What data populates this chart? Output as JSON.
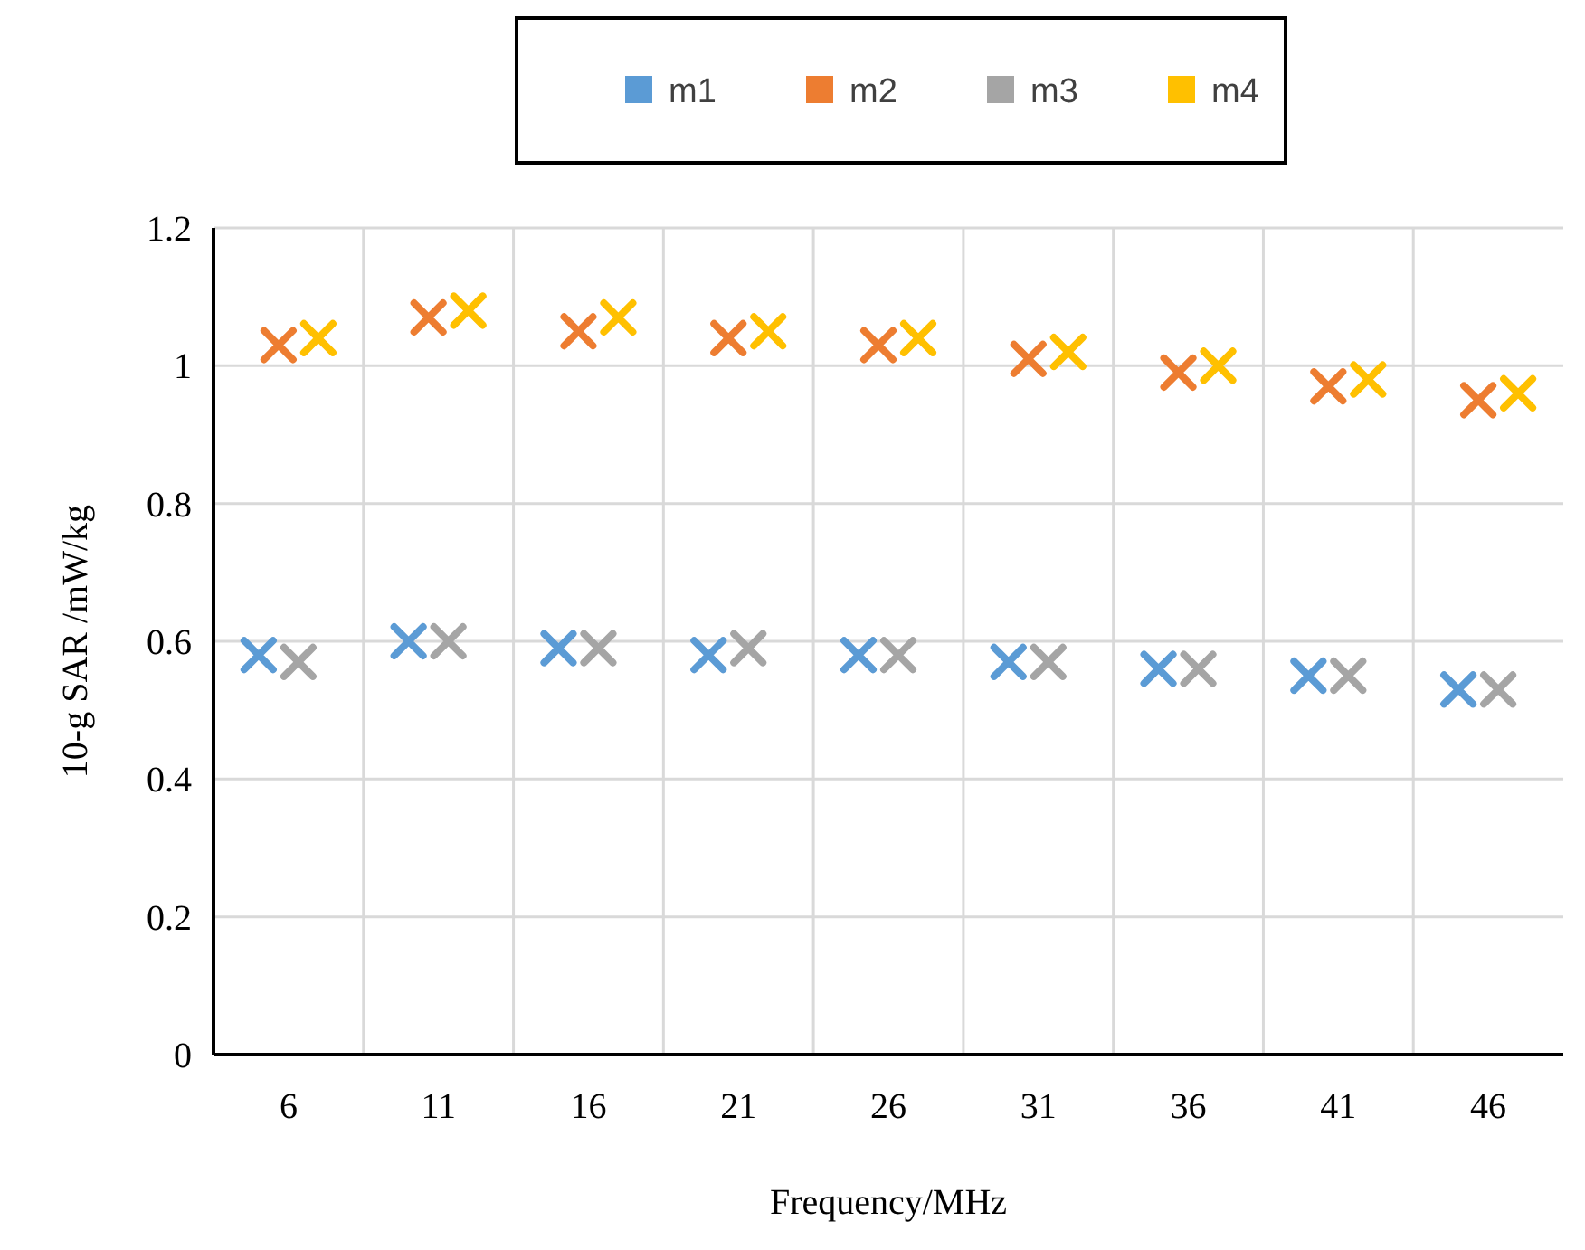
{
  "chart_data": {
    "type": "scatter",
    "xlabel": "Frequency/MHz",
    "ylabel": "10-g SAR /mW/kg",
    "categories": [
      "6",
      "11",
      "16",
      "21",
      "26",
      "31",
      "36",
      "41",
      "46"
    ],
    "series": [
      {
        "name": "m1",
        "color": "#5b9bd5",
        "values": [
          0.58,
          0.6,
          0.59,
          0.58,
          0.58,
          0.57,
          0.56,
          0.55,
          0.53
        ]
      },
      {
        "name": "m2",
        "color": "#ed7d31",
        "values": [
          1.03,
          1.07,
          1.05,
          1.04,
          1.03,
          1.01,
          0.99,
          0.97,
          0.95
        ]
      },
      {
        "name": "m3",
        "color": "#a5a5a5",
        "values": [
          0.57,
          0.6,
          0.59,
          0.59,
          0.58,
          0.57,
          0.56,
          0.55,
          0.53
        ]
      },
      {
        "name": "m4",
        "color": "#ffc000",
        "values": [
          1.04,
          1.08,
          1.07,
          1.05,
          1.04,
          1.02,
          1.0,
          0.98,
          0.96
        ]
      }
    ],
    "ylim": [
      0,
      1.2
    ],
    "yticks": [
      0,
      0.2,
      0.4,
      0.6,
      0.8,
      1,
      1.2
    ],
    "grid": true,
    "legend": "top",
    "marker": "cross"
  }
}
